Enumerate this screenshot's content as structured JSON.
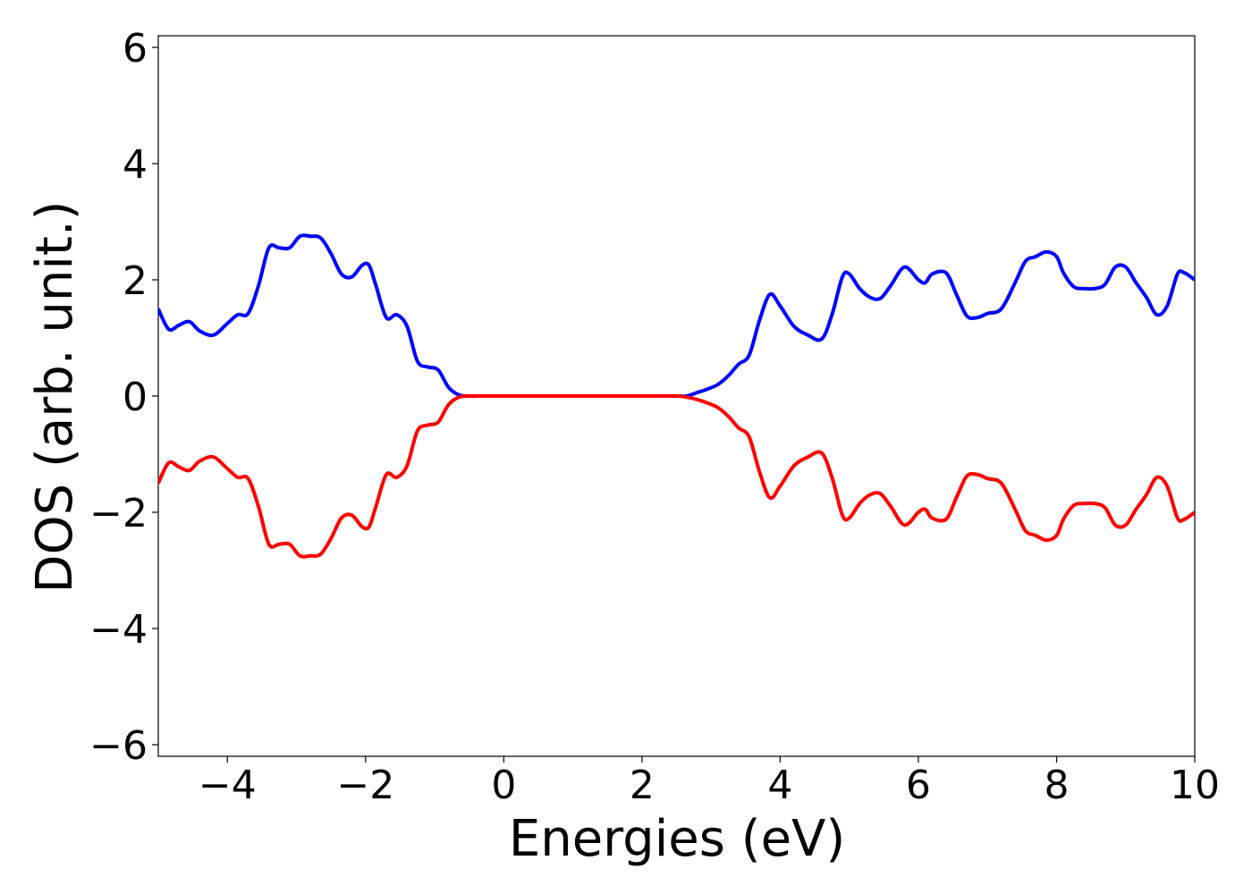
{
  "chart_data": {
    "type": "line",
    "title": "",
    "xlabel": "Energies (eV)",
    "ylabel": "DOS (arb. unit.)",
    "xlim": [
      -5,
      10
    ],
    "ylim": [
      -6.2,
      6.2
    ],
    "grid": false,
    "legend": "none",
    "xticks": [
      -4,
      -2,
      0,
      2,
      4,
      6,
      8,
      10
    ],
    "xtick_labels": [
      "−4",
      "−2",
      "0",
      "2",
      "4",
      "6",
      "8",
      "10"
    ],
    "yticks": [
      -6,
      -4,
      -2,
      0,
      2,
      4,
      6
    ],
    "ytick_labels": [
      "−6",
      "−4",
      "−2",
      "0",
      "2",
      "4",
      "6"
    ],
    "series": [
      {
        "color": "#0000ff",
        "x": [
          -5.0,
          -4.85,
          -4.7,
          -4.55,
          -4.4,
          -4.2,
          -4.0,
          -3.85,
          -3.7,
          -3.55,
          -3.4,
          -3.25,
          -3.1,
          -2.95,
          -2.8,
          -2.65,
          -2.5,
          -2.35,
          -2.2,
          -2.05,
          -1.95,
          -1.85,
          -1.7,
          -1.55,
          -1.4,
          -1.25,
          -1.1,
          -0.95,
          -0.8,
          -0.65,
          -0.5,
          -0.3,
          0.0,
          0.5,
          1.0,
          1.5,
          2.0,
          2.5,
          2.65,
          2.8,
          2.95,
          3.1,
          3.25,
          3.4,
          3.55,
          3.7,
          3.85,
          4.0,
          4.2,
          4.4,
          4.6,
          4.75,
          4.9,
          5.0,
          5.15,
          5.3,
          5.45,
          5.6,
          5.8,
          6.0,
          6.1,
          6.2,
          6.4,
          6.55,
          6.7,
          6.85,
          7.0,
          7.2,
          7.4,
          7.55,
          7.7,
          7.85,
          8.0,
          8.1,
          8.25,
          8.4,
          8.55,
          8.7,
          8.85,
          9.0,
          9.15,
          9.3,
          9.45,
          9.6,
          9.75,
          9.85,
          10.0
        ],
        "y": [
          1.5,
          1.15,
          1.22,
          1.28,
          1.12,
          1.05,
          1.25,
          1.4,
          1.42,
          1.9,
          2.55,
          2.55,
          2.55,
          2.75,
          2.75,
          2.72,
          2.45,
          2.1,
          2.05,
          2.25,
          2.25,
          1.9,
          1.35,
          1.4,
          1.2,
          0.6,
          0.5,
          0.45,
          0.15,
          0.02,
          0.0,
          0.0,
          0.0,
          0.0,
          0.0,
          0.0,
          0.0,
          0.0,
          0.0,
          0.06,
          0.12,
          0.2,
          0.35,
          0.55,
          0.7,
          1.3,
          1.75,
          1.55,
          1.2,
          1.05,
          0.98,
          1.4,
          2.05,
          2.1,
          1.85,
          1.7,
          1.68,
          1.9,
          2.22,
          2.0,
          1.95,
          2.1,
          2.12,
          1.75,
          1.38,
          1.35,
          1.42,
          1.5,
          1.95,
          2.32,
          2.4,
          2.48,
          2.4,
          2.12,
          1.88,
          1.85,
          1.85,
          1.92,
          2.22,
          2.22,
          1.95,
          1.7,
          1.4,
          1.55,
          2.1,
          2.12,
          2.0
        ]
      },
      {
        "color": "#ff0000",
        "x": [
          -5.0,
          -4.85,
          -4.7,
          -4.55,
          -4.4,
          -4.2,
          -4.0,
          -3.85,
          -3.7,
          -3.55,
          -3.4,
          -3.25,
          -3.1,
          -2.95,
          -2.8,
          -2.65,
          -2.5,
          -2.35,
          -2.2,
          -2.05,
          -1.95,
          -1.85,
          -1.7,
          -1.55,
          -1.4,
          -1.25,
          -1.1,
          -0.95,
          -0.8,
          -0.65,
          -0.5,
          -0.3,
          0.0,
          0.5,
          1.0,
          1.5,
          2.0,
          2.5,
          2.65,
          2.8,
          2.95,
          3.1,
          3.25,
          3.4,
          3.55,
          3.7,
          3.85,
          4.0,
          4.2,
          4.4,
          4.6,
          4.75,
          4.9,
          5.0,
          5.15,
          5.3,
          5.45,
          5.6,
          5.8,
          6.0,
          6.1,
          6.2,
          6.4,
          6.55,
          6.7,
          6.85,
          7.0,
          7.2,
          7.4,
          7.55,
          7.7,
          7.85,
          8.0,
          8.1,
          8.25,
          8.4,
          8.55,
          8.7,
          8.85,
          9.0,
          9.15,
          9.3,
          9.45,
          9.6,
          9.75,
          9.85,
          10.0
        ],
        "y": [
          -1.5,
          -1.15,
          -1.22,
          -1.28,
          -1.12,
          -1.05,
          -1.25,
          -1.4,
          -1.42,
          -1.9,
          -2.55,
          -2.55,
          -2.55,
          -2.75,
          -2.75,
          -2.72,
          -2.45,
          -2.1,
          -2.05,
          -2.25,
          -2.25,
          -1.9,
          -1.35,
          -1.4,
          -1.2,
          -0.6,
          -0.5,
          -0.45,
          -0.15,
          -0.02,
          0.0,
          0.0,
          0.0,
          0.0,
          0.0,
          0.0,
          0.0,
          0.0,
          -0.02,
          -0.06,
          -0.12,
          -0.2,
          -0.35,
          -0.55,
          -0.7,
          -1.3,
          -1.75,
          -1.55,
          -1.2,
          -1.05,
          -0.98,
          -1.4,
          -2.05,
          -2.1,
          -1.85,
          -1.7,
          -1.68,
          -1.9,
          -2.22,
          -2.0,
          -1.95,
          -2.1,
          -2.12,
          -1.75,
          -1.38,
          -1.35,
          -1.42,
          -1.5,
          -1.95,
          -2.32,
          -2.4,
          -2.48,
          -2.4,
          -2.12,
          -1.88,
          -1.85,
          -1.85,
          -1.92,
          -2.22,
          -2.22,
          -1.95,
          -1.7,
          -1.4,
          -1.55,
          -2.1,
          -2.12,
          -2.0
        ]
      }
    ]
  }
}
